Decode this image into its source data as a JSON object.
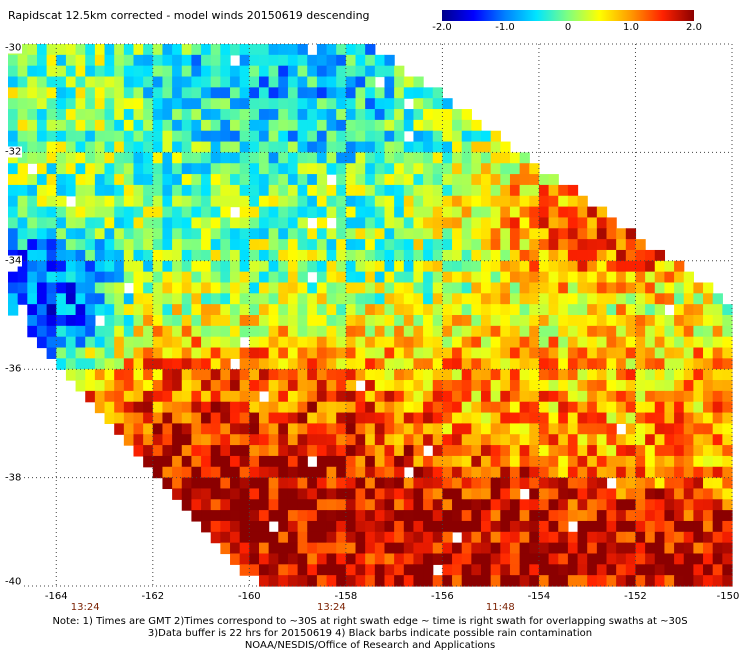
{
  "title": "Rapidscat 12.5km corrected - model winds 20150619 descending",
  "colorbar": {
    "tick_labels": [
      "-2.0",
      "-1.0",
      "0",
      "1.0",
      "2.0"
    ],
    "colors": [
      "#00008b",
      "#0000ff",
      "#0080ff",
      "#00e5ff",
      "#7fff7f",
      "#ffff00",
      "#ff9900",
      "#ff2200",
      "#8b0000"
    ]
  },
  "chart_data": {
    "type": "heatmap",
    "title": "Rapidscat 12.5km corrected - model winds 20150619 descending",
    "value_range": [
      -2.0,
      2.0
    ],
    "xlim": [
      -165,
      -150
    ],
    "ylim": [
      -40,
      -30
    ],
    "x_ticks": [
      "-164",
      "-162",
      "-160",
      "-158",
      "-156",
      "-154",
      "-152",
      "-150"
    ],
    "y_ticks": [
      "-30",
      "-32",
      "-34",
      "-36",
      "-38",
      "-40"
    ],
    "grid": true,
    "cell_size_deg": 0.2,
    "swath": {
      "upper_right_edge": [
        [
          -157.5,
          -30
        ],
        [
          -150,
          -34.8
        ]
      ],
      "lower_left_edge": [
        [
          -165,
          -35
        ],
        [
          -160,
          -39.8
        ]
      ],
      "east_edge_lon": -150,
      "south_edge_lat": -40
    },
    "regions": [
      {
        "name": "mixed near-zero field",
        "lon": [
          -165,
          -150
        ],
        "lat": [
          -35,
          -30
        ],
        "mean_value": 0.0
      },
      {
        "name": "negative patch north",
        "lon": [
          -161,
          -157
        ],
        "lat": [
          -32,
          -30
        ],
        "mean_value": -1.0
      },
      {
        "name": "negative patch far west",
        "lon": [
          -165,
          -163.5
        ],
        "lat": [
          -35.5,
          -34
        ],
        "mean_value": -1.4
      },
      {
        "name": "positive band northeast edge",
        "lon": [
          -155,
          -151
        ],
        "lat": [
          -34,
          -32.5
        ],
        "mean_value": 2.0
      },
      {
        "name": "positive band",
        "lon": [
          -164,
          -151
        ],
        "lat": [
          -37.5,
          -35.5
        ],
        "mean_value": 1.0
      },
      {
        "name": "strong positive core",
        "lon": [
          -162.5,
          -157
        ],
        "lat": [
          -38.5,
          -36.5
        ],
        "mean_value": 2.0
      },
      {
        "name": "strong positive south",
        "lon": [
          -160,
          -153
        ],
        "lat": [
          -40,
          -38.5
        ],
        "mean_value": 1.8
      }
    ],
    "time_labels": [
      {
        "lon": -163.4,
        "text": "13:24"
      },
      {
        "lon": -158.3,
        "text": "13:24"
      },
      {
        "lon": -154.8,
        "text": "11:48"
      }
    ]
  },
  "notes": [
    "Note: 1) Times are GMT 2)Times correspond to ~30S at right swath edge ~ time is right swath for overlapping swaths at ~30S",
    "3)Data buffer is 22 hrs for 20150619 4) Black barbs indicate possible rain contamination",
    "NOAA/NESDIS/Office of Research and Applications"
  ]
}
